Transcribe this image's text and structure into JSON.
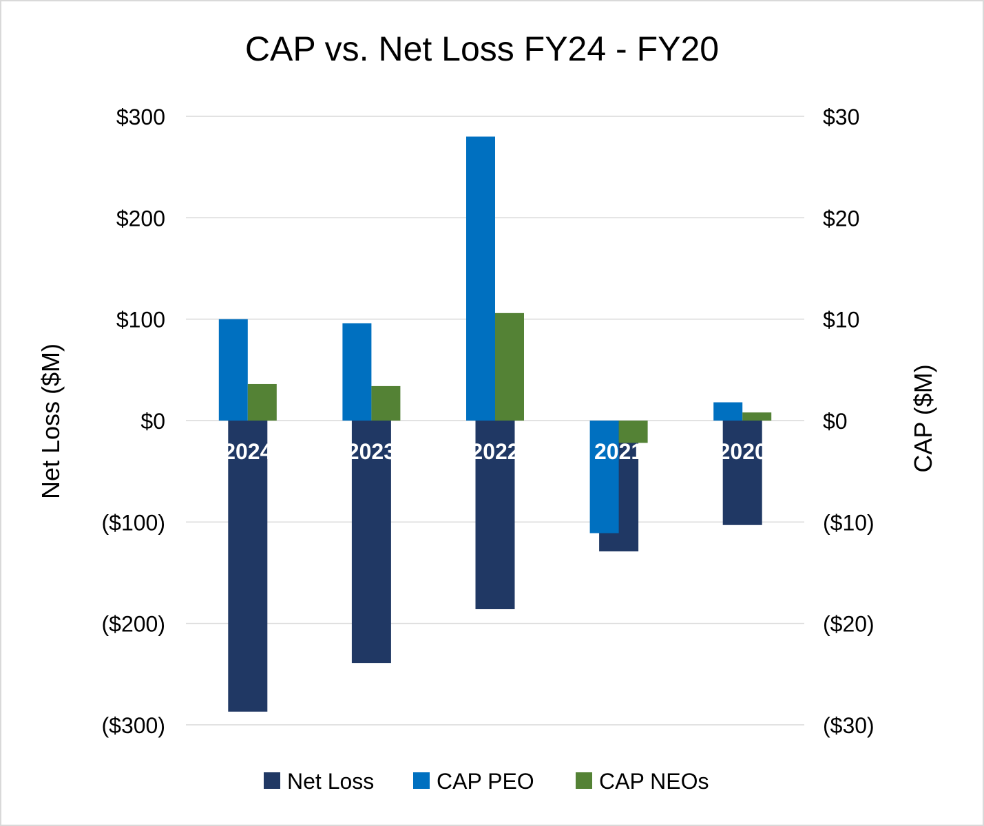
{
  "chart_data": {
    "type": "bar",
    "title": "CAP vs. Net Loss FY24 - FY20",
    "categories": [
      "2024",
      "2023",
      "2022",
      "2021",
      "2020"
    ],
    "y_left": {
      "label": "Net Loss ($M)",
      "lim": [
        -300,
        300
      ],
      "ticks": [
        300,
        200,
        100,
        0,
        -100,
        -200,
        -300
      ],
      "tick_labels": [
        "$300",
        "$200",
        "$100",
        "$0",
        "($100)",
        "($200)",
        "($300)"
      ]
    },
    "y_right": {
      "label": "CAP ($M)",
      "lim": [
        -30,
        30
      ],
      "ticks": [
        30,
        20,
        10,
        0,
        -10,
        -20,
        -30
      ],
      "tick_labels": [
        "$30",
        "$20",
        "$10",
        "$0",
        "($10)",
        "($20)",
        "($30)"
      ]
    },
    "series": [
      {
        "name": "Net Loss",
        "axis": "left",
        "color": "#203864",
        "values": [
          -287,
          -239,
          -186,
          -129,
          -103
        ]
      },
      {
        "name": "CAP PEO",
        "axis": "right",
        "color": "#0070c0",
        "values": [
          10.0,
          9.6,
          28.0,
          -11.1,
          1.8
        ]
      },
      {
        "name": "CAP NEOs",
        "axis": "right",
        "color": "#548235",
        "values": [
          3.6,
          3.4,
          10.6,
          -2.2,
          0.8
        ]
      }
    ],
    "grid": true,
    "legend_position": "bottom"
  }
}
